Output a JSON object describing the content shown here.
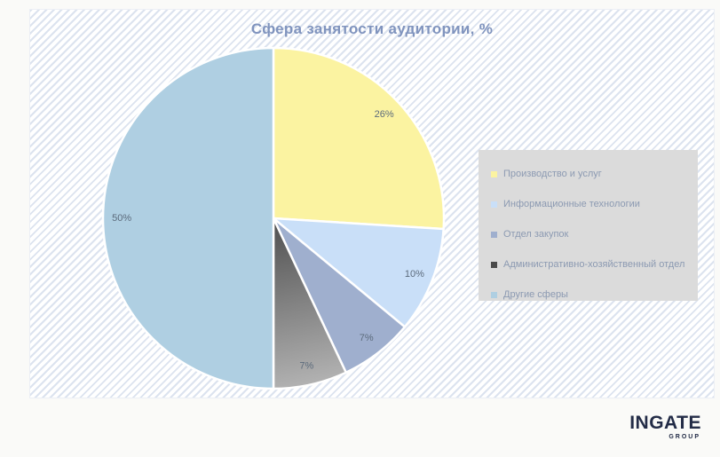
{
  "page": {
    "title": "Сфера занятости аудитории, %",
    "background": "#FAFAF8",
    "card_stripe_color": "#DCE3EF",
    "title_color": "#8094BE"
  },
  "chart_data": {
    "type": "pie",
    "title": "Сфера занятости аудитории, %",
    "start_angle_deg": 0,
    "direction": "clockwise",
    "legend_position": "right",
    "value_label_color": "#5C6B7C",
    "slices": [
      {
        "label": "Производство и услуг",
        "value": 26,
        "display": "26%",
        "color": "#FBF3A1"
      },
      {
        "label": "Информационные технологии",
        "value": 10,
        "display": "10%",
        "color": "#C9DFF8"
      },
      {
        "label": "Отдел закупок",
        "value": 7,
        "display": "7%",
        "color": "#9FAFCE"
      },
      {
        "label": "Административно-хозяйственный отдел",
        "value": 7,
        "display": "7%",
        "color": "#7A7A7A",
        "gradient": [
          "#4F4F4F",
          "#B2B2B2"
        ],
        "legend_swatch": "#4A4A4A"
      },
      {
        "label": "Другие сферы",
        "value": 50,
        "display": "50%",
        "color": "#AFCFE2"
      }
    ]
  },
  "legend": {
    "background": "#DBDBDB",
    "text_color": "#8C9AB2"
  },
  "logo": {
    "brand": "INGATE",
    "sub": "GROUP"
  }
}
